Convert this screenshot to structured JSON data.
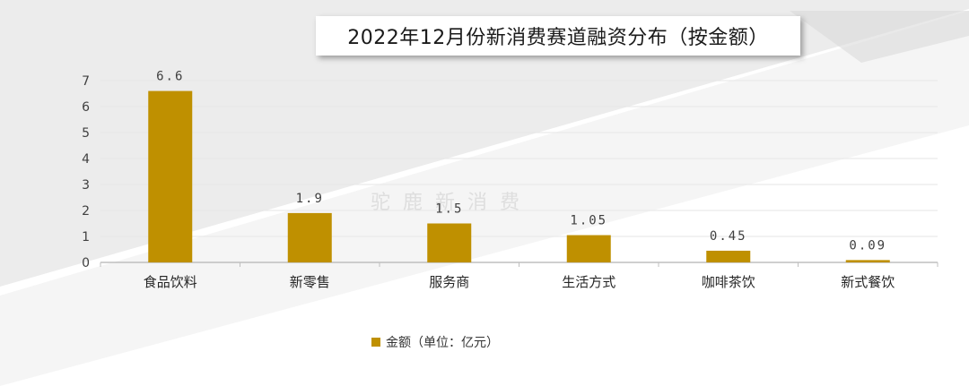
{
  "title": "2022年12月份新消费赛道融资分布（按金额）",
  "watermark": "驼鹿新消费",
  "colors": {
    "bar": "#BF9000",
    "axis": "#BFBFBF",
    "grid": "#E6E6E6",
    "text": "#404040"
  },
  "chart_data": {
    "type": "bar",
    "categories": [
      "食品饮料",
      "新零售",
      "服务商",
      "生活方式",
      "咖啡茶饮",
      "新式餐饮"
    ],
    "series": [
      {
        "name": "金额（单位：亿元）",
        "values": [
          6.6,
          1.9,
          1.5,
          1.05,
          0.45,
          0.09
        ]
      }
    ],
    "data_labels": [
      "6.6",
      "1.9",
      "1.5",
      "1.05",
      "0.45",
      "0.09"
    ],
    "y_ticks": [
      "0",
      "1",
      "2",
      "3",
      "4",
      "5",
      "6",
      "7"
    ],
    "ylim": [
      0,
      7
    ],
    "grid": true,
    "legend": "bottom-center"
  }
}
